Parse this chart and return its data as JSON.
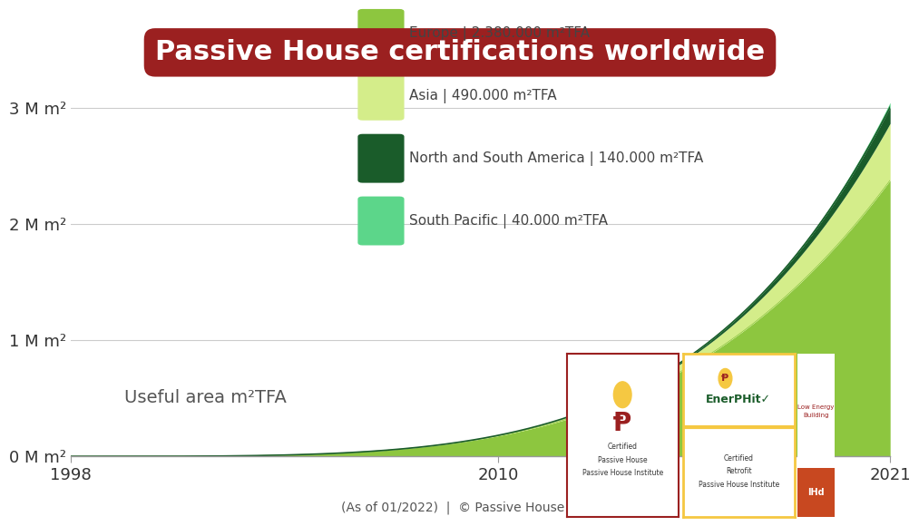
{
  "title": "Passive House certifications worldwide",
  "title_bg_color": "#9b2020",
  "title_text_color": "#ffffff",
  "background_color": "#ffffff",
  "xlabel_note": "(As of 01/2022)  |  © Passive House Institute",
  "ylabel_label": "Useful area m²TFA",
  "x_start": 1998,
  "x_end": 2021,
  "y_max": 3200000,
  "yticks": [
    0,
    1000000,
    2000000,
    3000000
  ],
  "ytick_labels": [
    "0 M m²",
    "1 M m²",
    "2 M m²",
    "3 M m²"
  ],
  "xticks": [
    1998,
    2010,
    2021
  ],
  "legend_entries": [
    {
      "label": "Europe | 2.380.000 m²TFA",
      "color": "#8dc63f"
    },
    {
      "label": "Asia | 490.000 m²TFA",
      "color": "#d4ed8a"
    },
    {
      "label": "North and South America | 140.000 m²TFA",
      "color": "#1a5c2a"
    },
    {
      "label": "South Pacific | 40.000 m²TFA",
      "color": "#5cd68a"
    }
  ],
  "colors": {
    "europe": "#8dc63f",
    "asia": "#d4ed8a",
    "north_south_america": "#1a5c2a",
    "south_pacific": "#5cd68a"
  },
  "grid_color": "#cccccc",
  "axis_color": "#999999"
}
